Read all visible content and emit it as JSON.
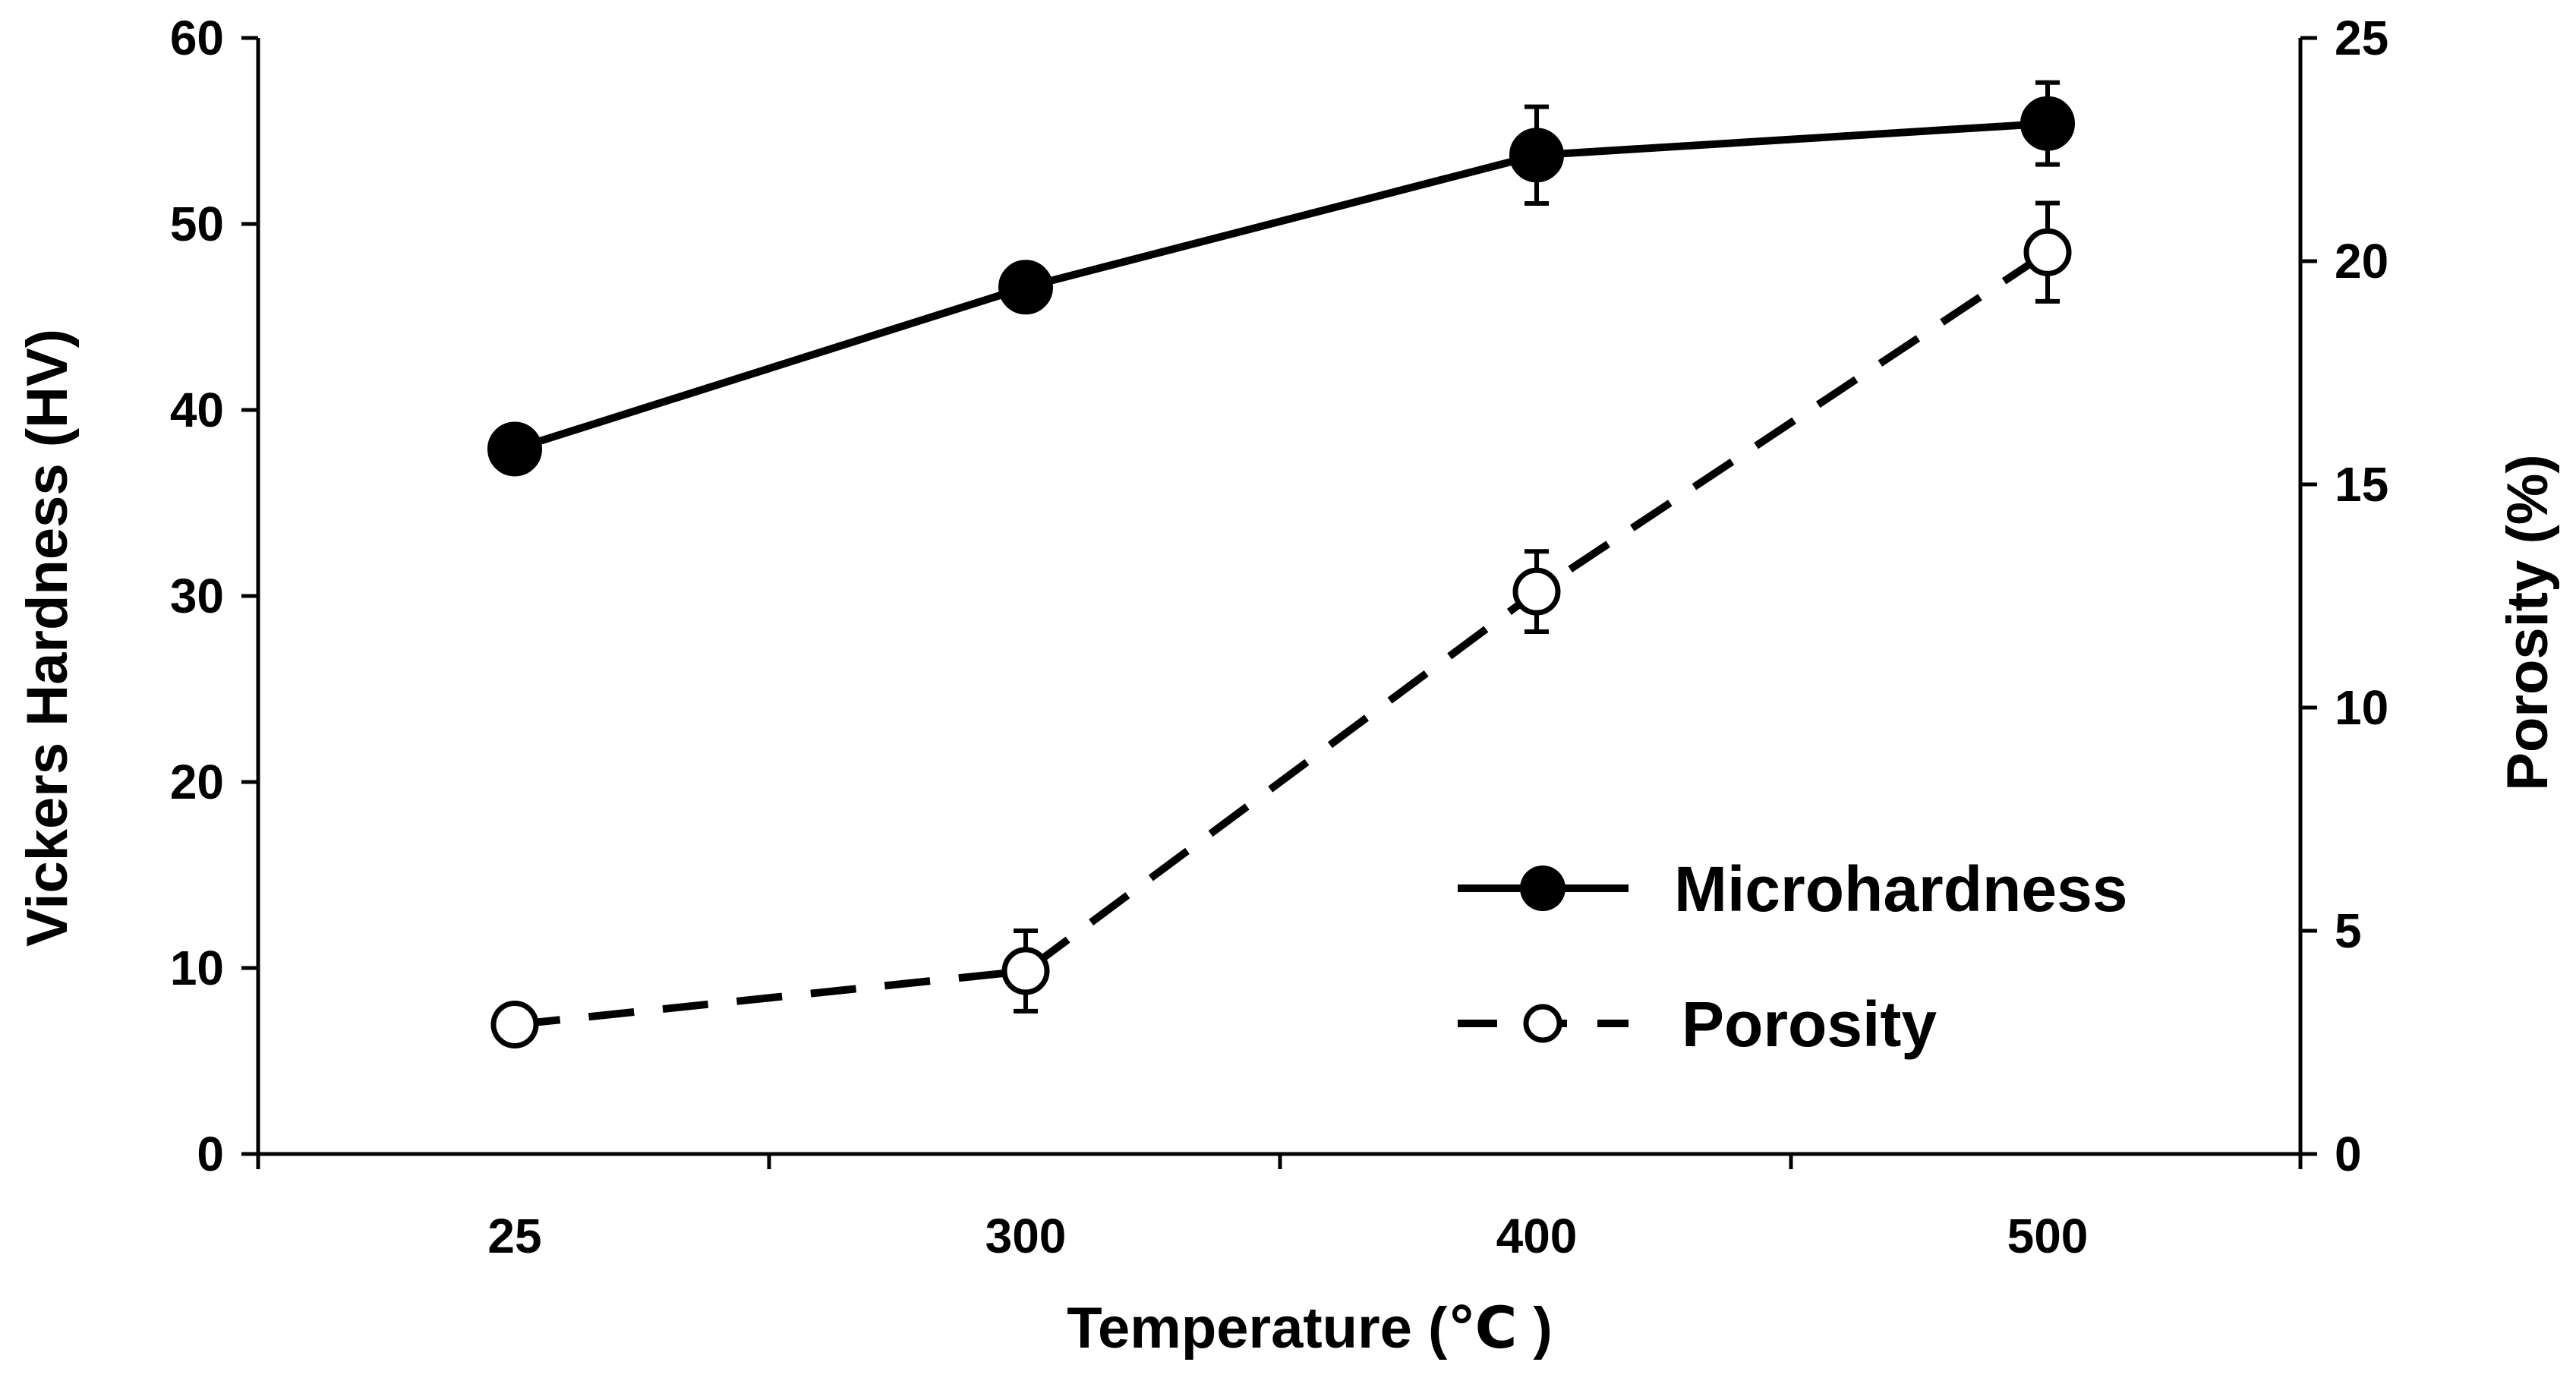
{
  "chart_data": {
    "type": "line",
    "title": "",
    "categories": [
      "25",
      "300",
      "400",
      "500"
    ],
    "xlabel": "Temperature (℃ )",
    "ylabel": "Vickers Hardness (HV)",
    "y2label": "Porosity (%)",
    "ylim": [
      0,
      60
    ],
    "y2lim": [
      0,
      25
    ],
    "yticks": [
      "0",
      "10",
      "20",
      "30",
      "40",
      "50",
      "60"
    ],
    "y2ticks": [
      "0",
      "5",
      "10",
      "15",
      "20",
      "25"
    ],
    "grid": false,
    "legend_position": "bottom-right",
    "series": [
      {
        "name": "Microhardness",
        "axis": "left",
        "line_style": "solid",
        "marker": "filled-circle",
        "values": [
          37.9,
          46.6,
          53.7,
          55.4
        ],
        "errors": [
          0.9,
          1.0,
          2.6,
          2.2
        ]
      },
      {
        "name": "Porosity",
        "axis": "right",
        "line_style": "dashed",
        "marker": "open-circle",
        "values": [
          2.9,
          4.1,
          12.6,
          20.2
        ],
        "errors": [
          0.0,
          0.9,
          0.9,
          1.1
        ]
      }
    ],
    "colors": {
      "line": "#000000",
      "background": "#ffffff"
    }
  }
}
